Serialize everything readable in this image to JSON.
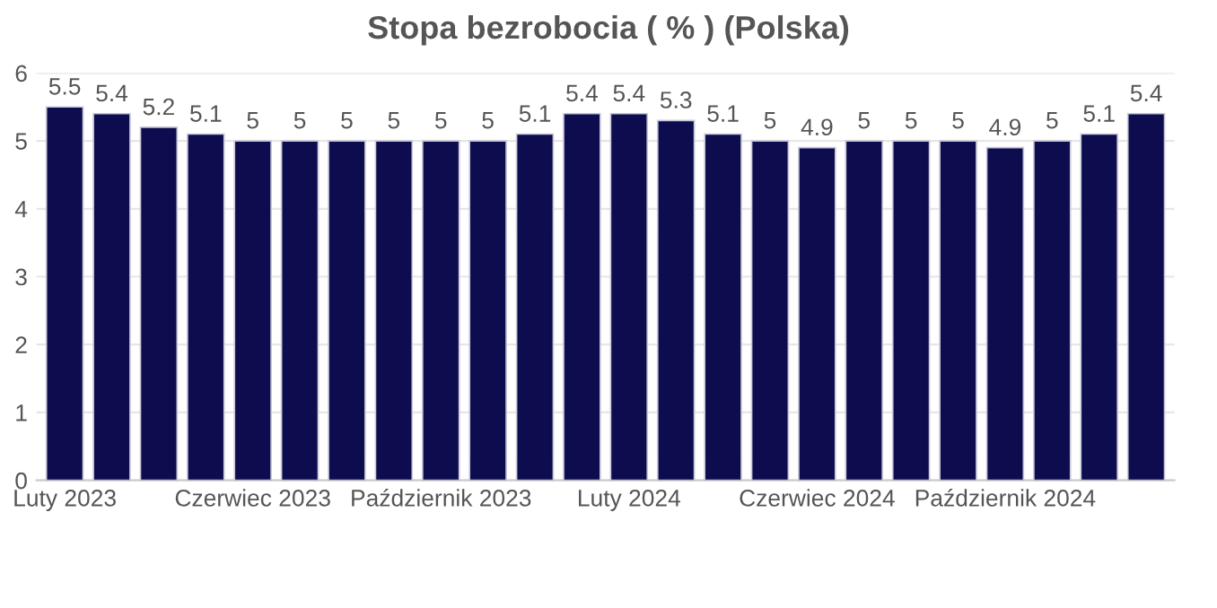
{
  "chart_data": {
    "type": "bar",
    "title": "Stopa bezrobocia ( % ) (Polska)",
    "categories": [
      "Luty 2023",
      null,
      null,
      null,
      "Czerwiec 2023",
      null,
      null,
      null,
      "Październik 2023",
      null,
      null,
      null,
      "Luty 2024",
      null,
      null,
      null,
      "Czerwiec 2024",
      null,
      null,
      null,
      "Październik 2024",
      null,
      null,
      null
    ],
    "values": [
      5.5,
      5.4,
      5.2,
      5.1,
      5,
      5,
      5,
      5,
      5,
      5,
      5.1,
      5.4,
      5.4,
      5.3,
      5.1,
      5,
      4.9,
      5,
      5,
      5,
      4.9,
      5,
      5.1,
      5.4
    ],
    "color": "#0d0c4f",
    "ylim": [
      0,
      6
    ],
    "yticks": [
      0,
      1,
      2,
      3,
      4,
      5,
      6
    ],
    "grid": "y",
    "data_labels": true
  }
}
